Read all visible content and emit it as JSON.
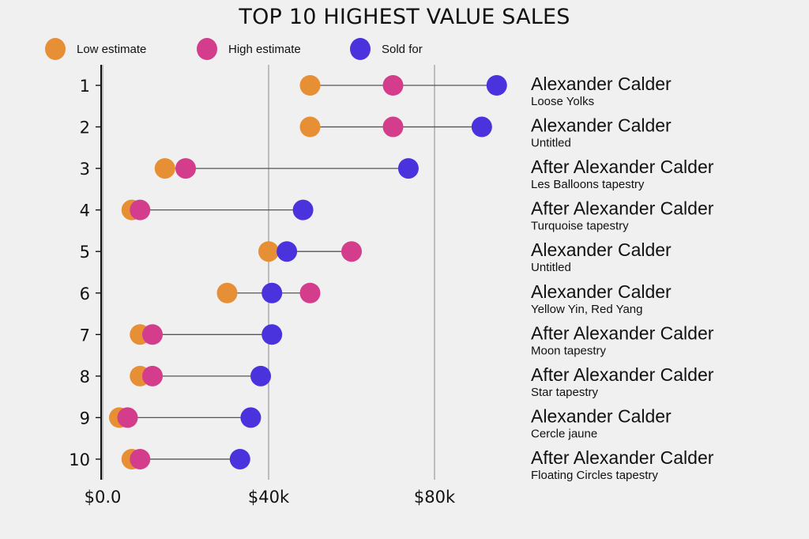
{
  "chart_data": {
    "type": "dumbbell",
    "title": "TOP 10 HIGHEST VALUE SALES",
    "xlabel": "",
    "ylabel": "",
    "xlim": [
      0,
      100000
    ],
    "xticks": [
      0,
      40000,
      80000
    ],
    "xtick_labels": [
      "$0.0",
      "$40k",
      "$80k"
    ],
    "grid": "vertical",
    "legend_position": "top-left",
    "colors": {
      "low": "#e78f35",
      "high": "#d33d8b",
      "sold": "#4a33dc",
      "connector": "#555555",
      "gridline": "#b0b0b0",
      "spine": "#111111"
    },
    "legend": [
      {
        "key": "low",
        "label": "Low estimate"
      },
      {
        "key": "high",
        "label": "High estimate"
      },
      {
        "key": "sold",
        "label": "Sold for"
      }
    ],
    "rows": [
      {
        "rank": "1",
        "artist": "Alexander Calder",
        "work": "Loose Yolks",
        "low": 50000,
        "high": 70000,
        "sold": 95000
      },
      {
        "rank": "2",
        "artist": "Alexander Calder",
        "work": "Untitled",
        "low": 50000,
        "high": 70000,
        "sold": 91400
      },
      {
        "rank": "3",
        "artist": "After Alexander Calder",
        "work": "Les Balloons tapestry",
        "low": 15000,
        "high": 20000,
        "sold": 73700
      },
      {
        "rank": "4",
        "artist": "After Alexander Calder",
        "work": "Turquoise tapestry",
        "low": 7000,
        "high": 9000,
        "sold": 48300
      },
      {
        "rank": "5",
        "artist": "Alexander Calder",
        "work": "Untitled",
        "low": 40000,
        "high": 60000,
        "sold": 44400
      },
      {
        "rank": "6",
        "artist": "Alexander Calder",
        "work": "Yellow Yin, Red Yang",
        "low": 30000,
        "high": 50000,
        "sold": 40800
      },
      {
        "rank": "7",
        "artist": "After Alexander Calder",
        "work": "Moon tapestry",
        "low": 9000,
        "high": 12000,
        "sold": 40800
      },
      {
        "rank": "8",
        "artist": "After Alexander Calder",
        "work": "Star tapestry",
        "low": 9000,
        "high": 12000,
        "sold": 38100
      },
      {
        "rank": "9",
        "artist": "Alexander Calder",
        "work": "Cercle jaune",
        "low": 4000,
        "high": 6000,
        "sold": 35700
      },
      {
        "rank": "10",
        "artist": "After Alexander Calder",
        "work": "Floating Circles tapestry",
        "low": 7000,
        "high": 9000,
        "sold": 33100
      }
    ]
  }
}
